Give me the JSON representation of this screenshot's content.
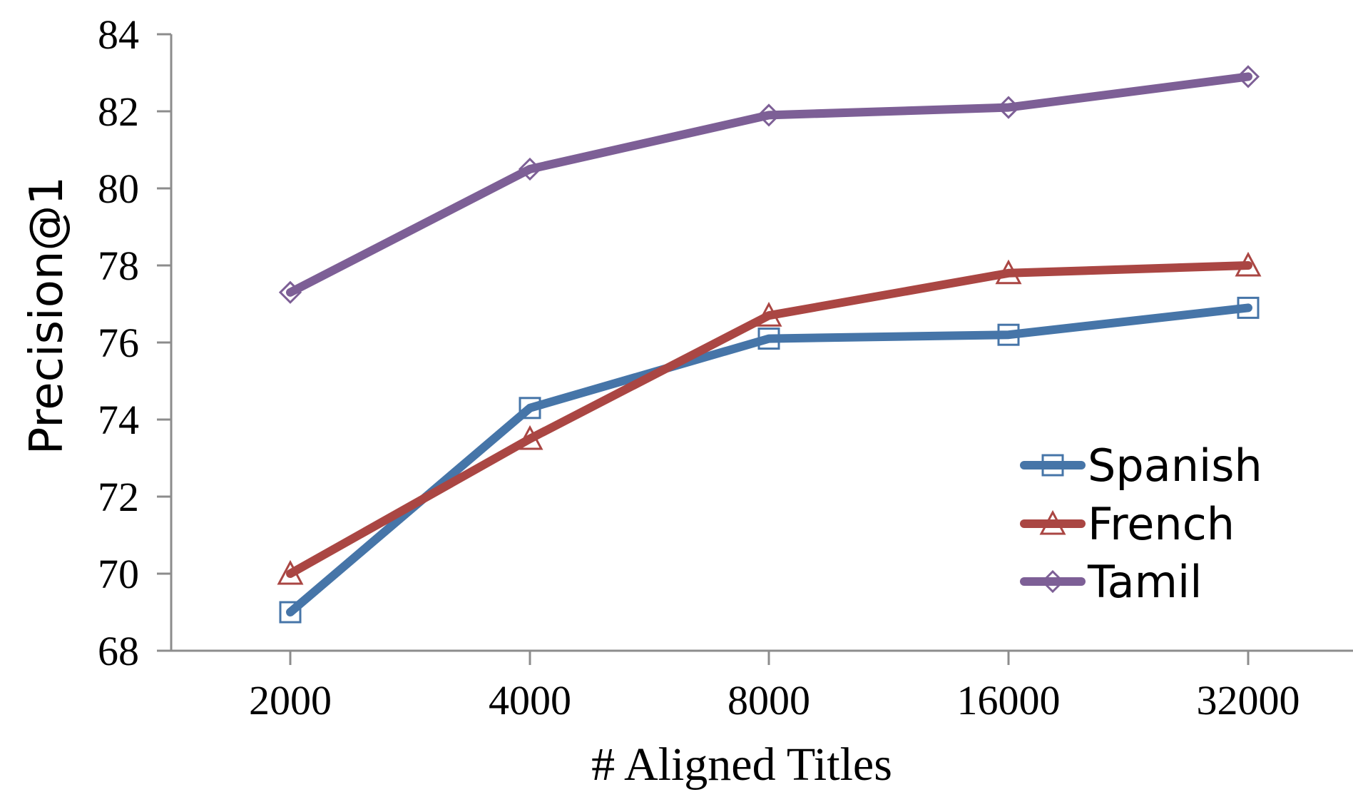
{
  "chart_data": {
    "type": "line",
    "xlabel": "# Aligned Titles",
    "ylabel": "Precision@1",
    "categories": [
      "2000",
      "4000",
      "8000",
      "16000",
      "32000"
    ],
    "ylim": [
      68,
      84
    ],
    "yticks": [
      "68",
      "70",
      "72",
      "74",
      "76",
      "78",
      "80",
      "82",
      "84"
    ],
    "grid": false,
    "legend_position": "bottom-right",
    "series": [
      {
        "name": "Spanish",
        "values": [
          69.0,
          74.3,
          76.1,
          76.2,
          76.9
        ],
        "color": "#4675A8",
        "marker": "square"
      },
      {
        "name": "French",
        "values": [
          70.0,
          73.5,
          76.7,
          77.8,
          78.0
        ],
        "color": "#AA4643",
        "marker": "triangle"
      },
      {
        "name": "Tamil",
        "values": [
          77.3,
          80.5,
          81.9,
          82.1,
          82.9
        ],
        "color": "#7D5F96",
        "marker": "diamond"
      }
    ]
  }
}
